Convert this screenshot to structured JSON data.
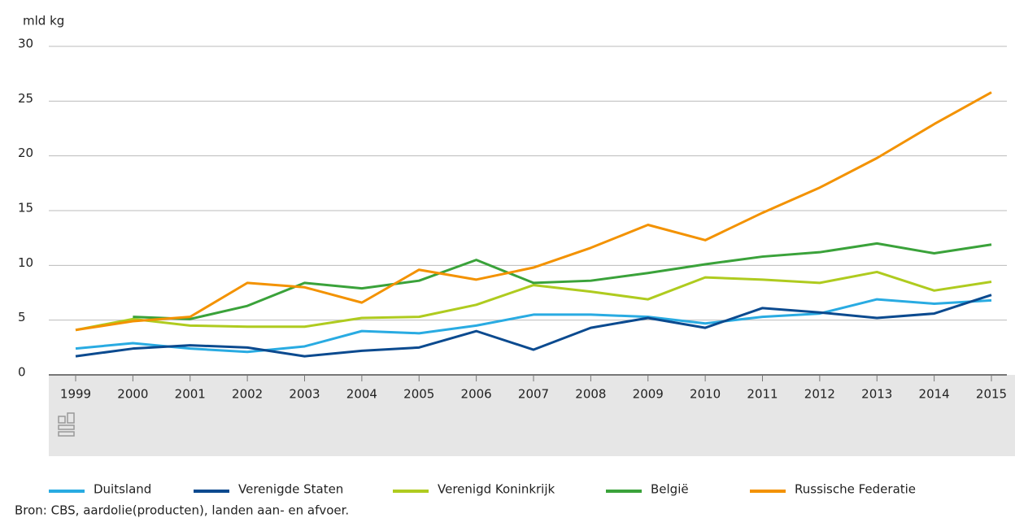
{
  "chart_data": {
    "type": "line",
    "y_label": "mld kg",
    "categories": [
      "1999",
      "2000",
      "2001",
      "2002",
      "2003",
      "2004",
      "2005",
      "2006",
      "2007",
      "2008",
      "2009",
      "2010",
      "2011",
      "2012",
      "2013",
      "2014",
      "2015"
    ],
    "series": [
      {
        "name": "Duitsland",
        "color": "#29abe2",
        "values": [
          2.4,
          2.9,
          2.4,
          2.1,
          2.6,
          4.0,
          3.8,
          4.5,
          5.5,
          5.5,
          5.3,
          4.7,
          5.3,
          5.6,
          6.9,
          6.5,
          6.8
        ]
      },
      {
        "name": "Verenigde Staten",
        "color": "#0b4a8f",
        "values": [
          1.7,
          2.4,
          2.7,
          2.5,
          1.7,
          2.2,
          2.5,
          4.0,
          2.3,
          4.3,
          5.2,
          4.3,
          6.1,
          5.7,
          5.2,
          5.6,
          7.3
        ]
      },
      {
        "name": "Verenigd Koninkrijk",
        "color": "#afcb1f",
        "values": [
          4.1,
          5.1,
          4.5,
          4.4,
          4.4,
          5.2,
          5.3,
          6.4,
          8.2,
          7.6,
          6.9,
          8.9,
          8.7,
          8.4,
          9.4,
          7.7,
          8.5
        ]
      },
      {
        "name": "België",
        "color": "#3aa23a",
        "values": [
          null,
          5.3,
          5.1,
          6.3,
          8.4,
          7.9,
          8.6,
          10.5,
          8.4,
          8.6,
          9.3,
          10.1,
          10.8,
          11.2,
          12.0,
          11.1,
          11.9
        ]
      },
      {
        "name": "Russische Federatie",
        "color": "#f39200",
        "values": [
          4.1,
          4.9,
          5.3,
          8.4,
          8.0,
          6.6,
          9.6,
          8.7,
          9.8,
          11.6,
          13.7,
          12.3,
          14.8,
          17.1,
          19.8,
          22.9,
          25.8
        ]
      }
    ],
    "ylim": [
      0,
      30
    ],
    "yticks": [
      0,
      5,
      10,
      15,
      20,
      25,
      30
    ],
    "grid": true,
    "source": "Bron: CBS, aardolie(producten), landen aan- en afvoer."
  }
}
